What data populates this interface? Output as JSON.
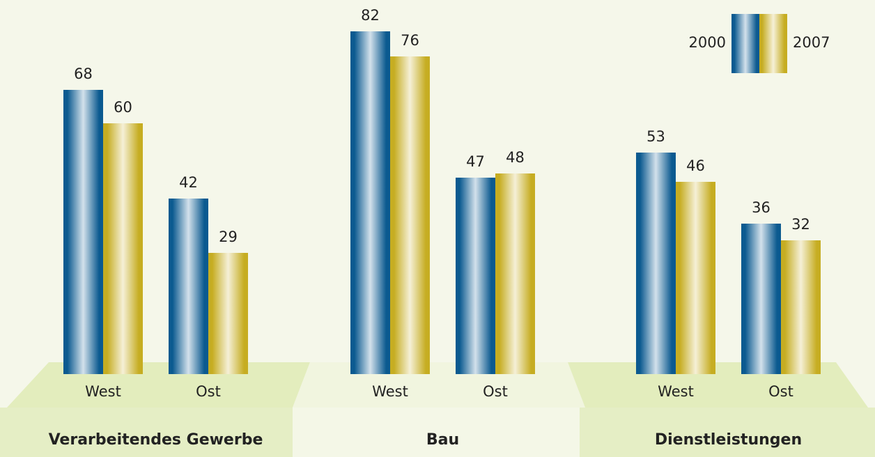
{
  "chart_data": {
    "type": "bar",
    "groups": [
      "Verarbeitendes Gewerbe",
      "Bau",
      "Dienstleistungen"
    ],
    "categories": [
      "West",
      "Ost",
      "West",
      "Ost",
      "West",
      "Ost"
    ],
    "series": [
      {
        "name": "2000",
        "color": "#0b5a90",
        "values": [
          68,
          42,
          82,
          47,
          53,
          36
        ]
      },
      {
        "name": "2007",
        "color": "#c6ad22",
        "values": [
          60,
          29,
          76,
          48,
          46,
          32
        ]
      }
    ],
    "legend": "top-right"
  }
}
